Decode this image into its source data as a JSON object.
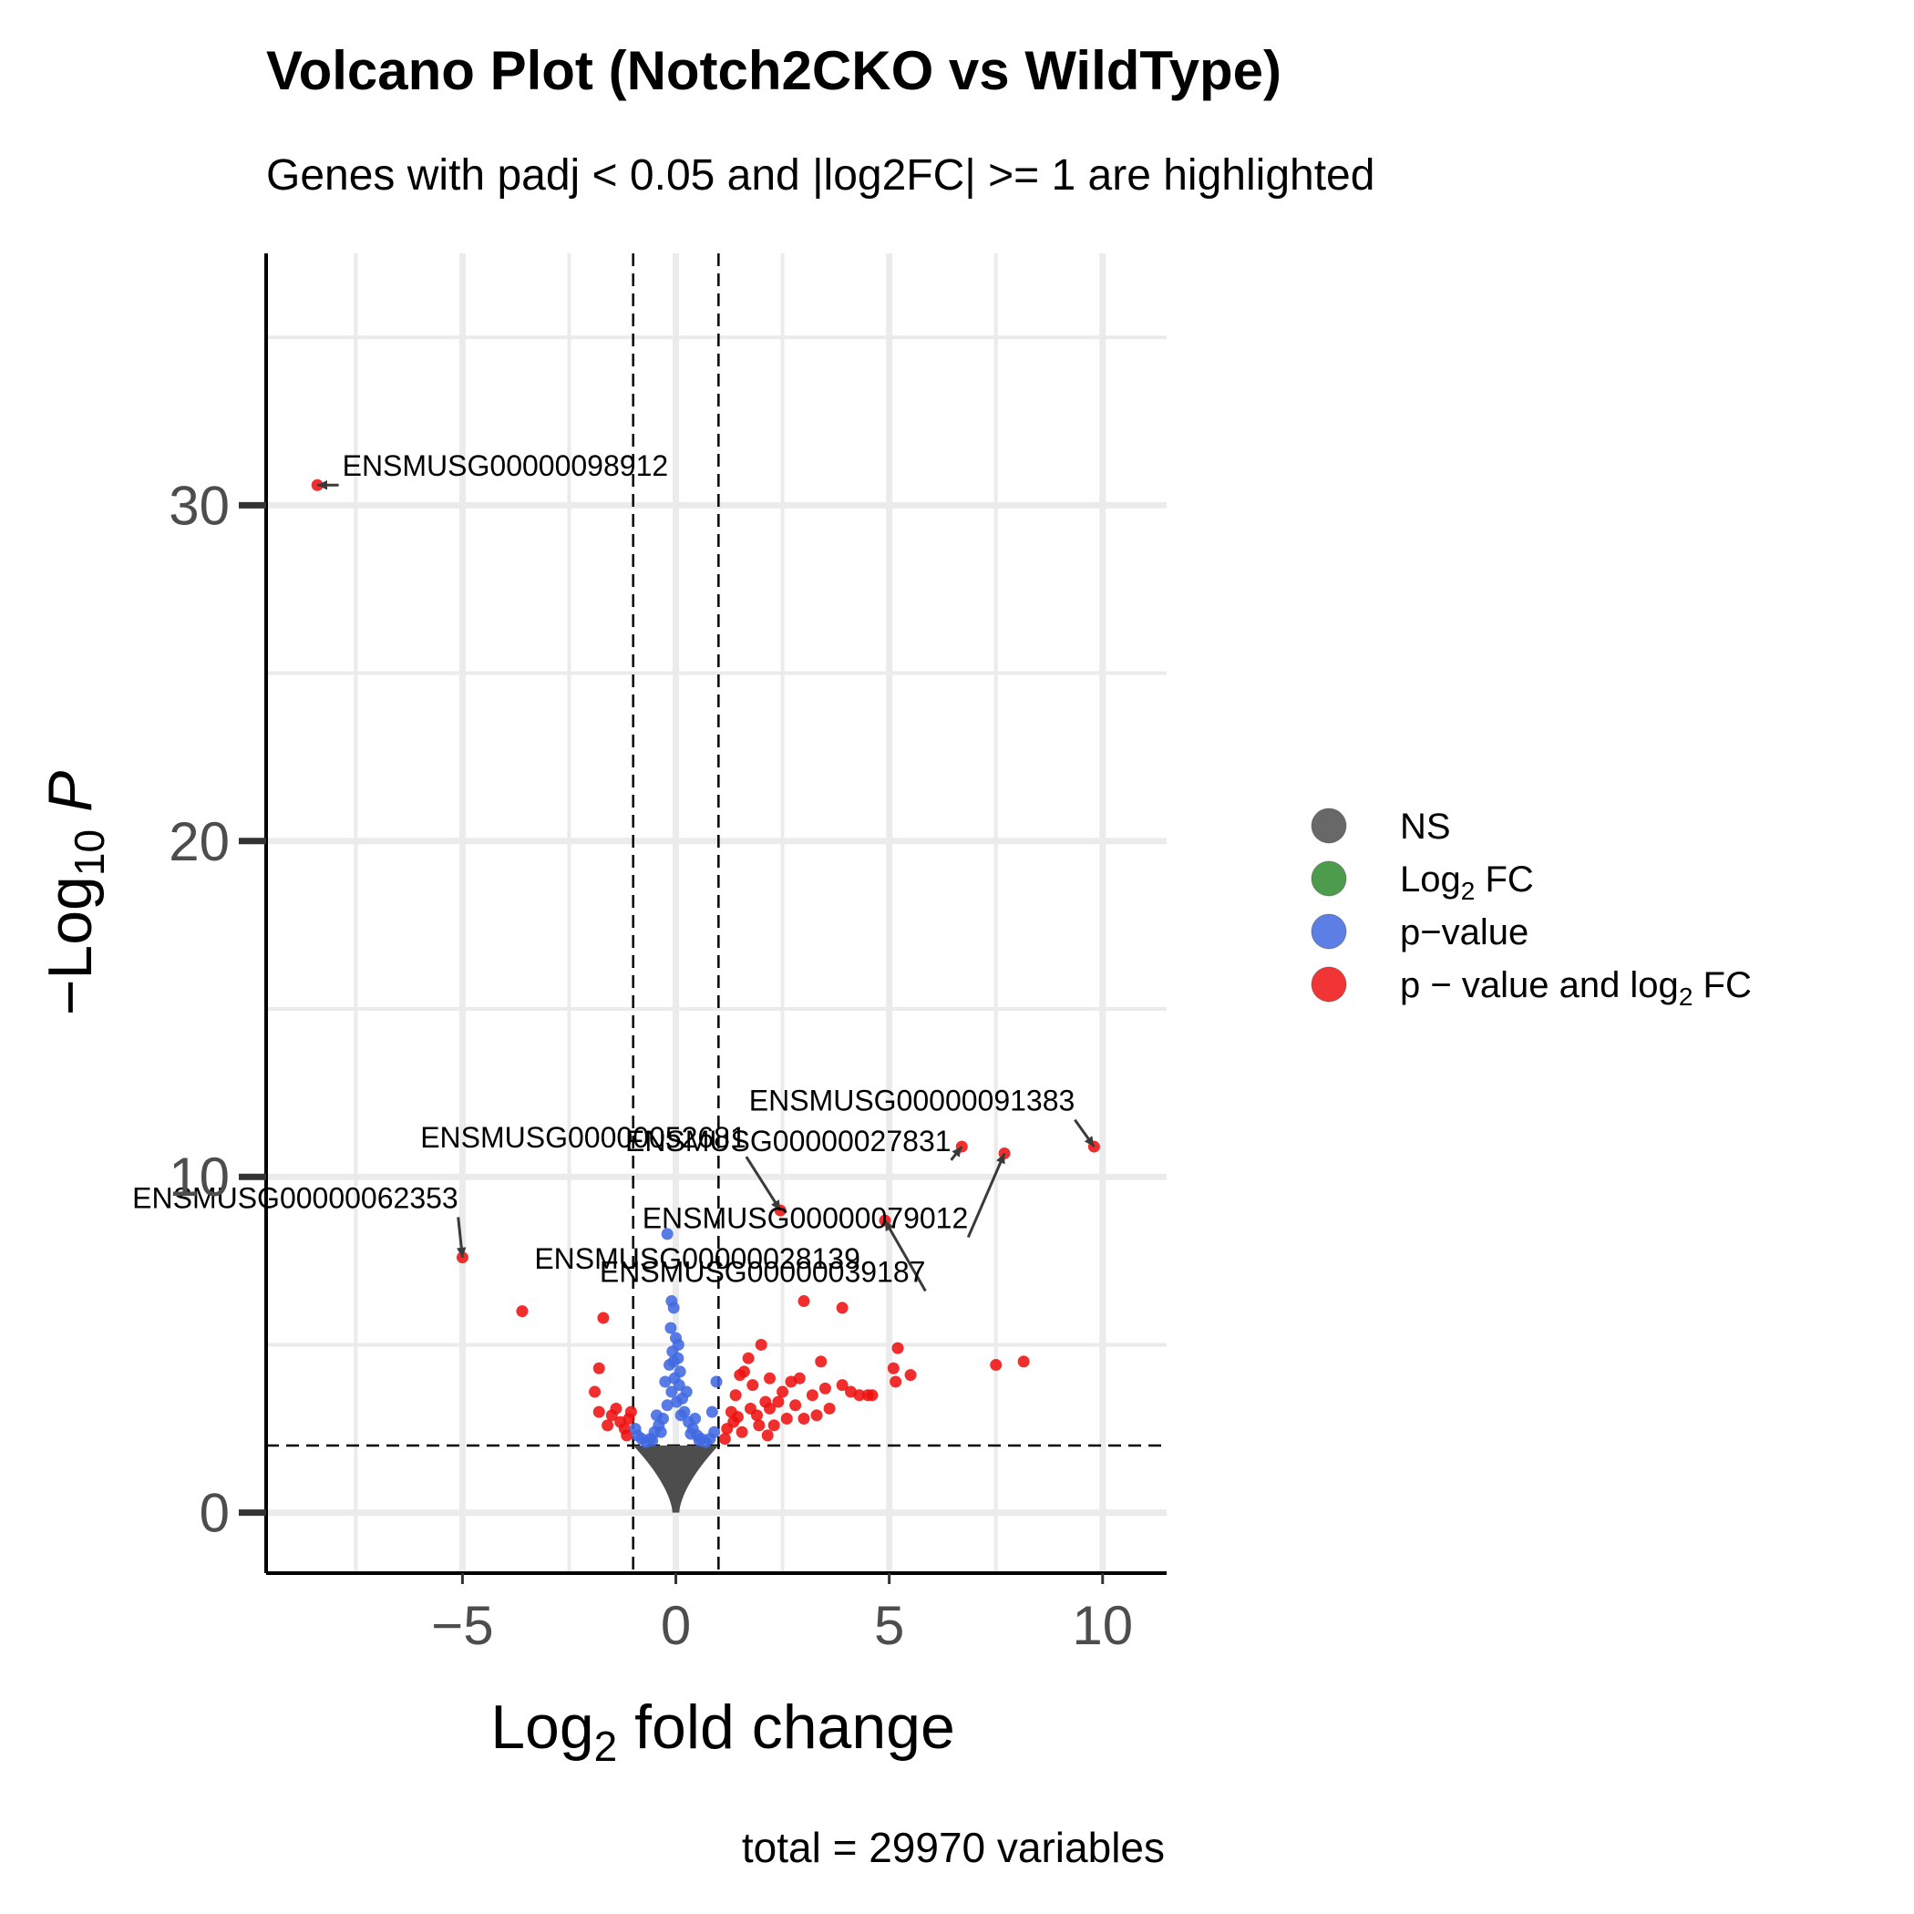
{
  "chart_data": {
    "type": "scatter",
    "title": "Volcano Plot (Notch2CKO vs WildType)",
    "subtitle": "Genes with padj < 0.05 and |log2FC| >= 1 are highlighted",
    "xlabel": {
      "prefix": "Log",
      "sub": "2",
      "suffix": " fold change"
    },
    "ylabel": {
      "prefix": "−Log",
      "sub": "10",
      "suffix": " P"
    },
    "caption": "total = 29970 variables",
    "xlim": [
      -9.6,
      11.5
    ],
    "ylim": [
      -1.8,
      37.5
    ],
    "x_ticks": [
      -5,
      0,
      5,
      10
    ],
    "x_tick_labels": [
      "−5",
      "0",
      "5",
      "10"
    ],
    "y_ticks": [
      0,
      10,
      20,
      30
    ],
    "y_tick_labels": [
      "0",
      "10",
      "20",
      "30"
    ],
    "grid": true,
    "fc_cutoff": 1,
    "p_cutoff_log10": 2,
    "colors": {
      "NS": "#4d4d4d",
      "FC": "#2e8b2e",
      "P": "#4169e1",
      "FC_P": "#ee1111"
    },
    "legend": {
      "position": "right",
      "items": [
        {
          "key": "NS",
          "text": "NS"
        },
        {
          "key": "FC",
          "prefix": "Log",
          "sub": "2",
          "suffix": " FC"
        },
        {
          "key": "P",
          "text": "p−value"
        },
        {
          "key": "FC_P",
          "prefix": "p − value and log",
          "sub": "2",
          "suffix": " FC"
        }
      ]
    },
    "series": [
      {
        "name": "FC_P",
        "points": [
          [
            -8.4,
            30.6
          ],
          [
            -5.0,
            7.6
          ],
          [
            -3.6,
            6.0
          ],
          [
            -1.7,
            5.8
          ],
          [
            -1.8,
            4.3
          ],
          [
            -1.9,
            3.6
          ],
          [
            -1.8,
            3.0
          ],
          [
            -1.5,
            2.9
          ],
          [
            -1.4,
            3.1
          ],
          [
            -1.3,
            2.7
          ],
          [
            -1.2,
            2.5
          ],
          [
            -1.1,
            2.8
          ],
          [
            -1.05,
            3.0
          ],
          [
            -1.6,
            2.6
          ],
          [
            -1.15,
            2.3
          ],
          [
            1.2,
            2.5
          ],
          [
            1.3,
            3.0
          ],
          [
            1.4,
            3.5
          ],
          [
            1.5,
            4.1
          ],
          [
            1.6,
            4.2
          ],
          [
            1.7,
            4.6
          ],
          [
            1.8,
            3.8
          ],
          [
            1.9,
            2.9
          ],
          [
            2.0,
            5.0
          ],
          [
            2.1,
            3.3
          ],
          [
            2.2,
            4.0
          ],
          [
            2.3,
            2.6
          ],
          [
            2.5,
            3.6
          ],
          [
            2.6,
            2.8
          ],
          [
            2.7,
            3.9
          ],
          [
            2.8,
            3.2
          ],
          [
            2.9,
            4.0
          ],
          [
            3.0,
            2.8
          ],
          [
            3.2,
            3.5
          ],
          [
            3.3,
            2.9
          ],
          [
            3.4,
            4.5
          ],
          [
            3.5,
            3.7
          ],
          [
            3.6,
            3.1
          ],
          [
            2.4,
            3.3
          ],
          [
            1.15,
            2.2
          ],
          [
            1.35,
            2.7
          ],
          [
            1.55,
            2.4
          ],
          [
            1.75,
            3.1
          ],
          [
            1.95,
            2.6
          ],
          [
            2.15,
            2.3
          ],
          [
            3.9,
            3.8
          ],
          [
            4.1,
            3.6
          ],
          [
            4.3,
            3.5
          ],
          [
            4.5,
            3.5
          ],
          [
            4.6,
            3.5
          ],
          [
            5.1,
            4.3
          ],
          [
            5.2,
            4.9
          ],
          [
            5.15,
            3.9
          ],
          [
            5.5,
            4.1
          ],
          [
            7.5,
            4.4
          ],
          [
            8.15,
            4.5
          ],
          [
            2.45,
            9.0
          ],
          [
            3.0,
            6.3
          ],
          [
            4.9,
            8.7
          ],
          [
            6.7,
            10.9
          ],
          [
            7.7,
            10.7
          ],
          [
            9.8,
            10.9
          ],
          [
            3.9,
            6.1
          ],
          [
            2.2,
            3.1
          ],
          [
            1.45,
            2.85
          ]
        ]
      },
      {
        "name": "P",
        "points": [
          [
            -0.2,
            8.3
          ],
          [
            -0.1,
            6.3
          ],
          [
            -0.05,
            6.1
          ],
          [
            -0.12,
            5.5
          ],
          [
            0.0,
            5.2
          ],
          [
            -0.08,
            4.8
          ],
          [
            0.05,
            4.6
          ],
          [
            -0.15,
            4.4
          ],
          [
            0.1,
            4.2
          ],
          [
            -0.03,
            4.0
          ],
          [
            0.08,
            3.8
          ],
          [
            -0.1,
            3.6
          ],
          [
            0.15,
            3.4
          ],
          [
            -0.2,
            3.2
          ],
          [
            0.2,
            3.0
          ],
          [
            -0.3,
            2.8
          ],
          [
            0.3,
            2.7
          ],
          [
            -0.4,
            2.6
          ],
          [
            0.4,
            2.5
          ],
          [
            -0.5,
            2.4
          ],
          [
            0.5,
            2.3
          ],
          [
            -0.6,
            2.2
          ],
          [
            0.6,
            2.2
          ],
          [
            -0.7,
            2.1
          ],
          [
            0.7,
            2.1
          ],
          [
            0.8,
            2.2
          ],
          [
            -0.8,
            2.2
          ],
          [
            0.9,
            2.4
          ],
          [
            -0.9,
            2.3
          ],
          [
            0.95,
            3.9
          ],
          [
            0.85,
            3.0
          ],
          [
            -0.95,
            2.5
          ],
          [
            0.25,
            3.6
          ],
          [
            -0.25,
            3.9
          ],
          [
            0.02,
            3.3
          ],
          [
            0.12,
            2.9
          ],
          [
            -0.35,
            2.4
          ],
          [
            0.35,
            2.35
          ],
          [
            -0.45,
            2.9
          ],
          [
            0.45,
            2.8
          ],
          [
            -0.55,
            2.15
          ],
          [
            0.55,
            2.15
          ],
          [
            -0.05,
            4.5
          ],
          [
            0.06,
            5.0
          ]
        ]
      }
    ],
    "labels": [
      {
        "text": "ENSMUSG00000098912",
        "point": [
          -8.4,
          30.6
        ],
        "anchor": [
          -7.9,
          30.6
        ],
        "align": "start"
      },
      {
        "text": "ENSMUSG00000052681",
        "point": [
          2.45,
          9.0
        ],
        "anchor": [
          1.65,
          10.6
        ],
        "align": "end"
      },
      {
        "text": "ENSMUSG00000062353",
        "point": [
          -5.0,
          7.6
        ],
        "anchor": [
          -5.1,
          8.8
        ],
        "align": "end"
      },
      {
        "text": "ENSMUSG00000028139",
        "point": [
          -3.4,
          7.0
        ],
        "anchor": [
          -3.4,
          7.0
        ],
        "align": "start"
      },
      {
        "text": "ENSMUSG00000091383",
        "point": [
          9.8,
          10.9
        ],
        "anchor": [
          9.35,
          11.7
        ],
        "align": "end"
      },
      {
        "text": "ENSMUSG00000027831",
        "point": [
          6.7,
          10.9
        ],
        "anchor": [
          6.45,
          10.5
        ],
        "align": "end"
      },
      {
        "text": "ENSMUSG00000079012",
        "point": [
          7.7,
          10.7
        ],
        "anchor": [
          6.85,
          8.2
        ],
        "align": "end"
      },
      {
        "text": "ENSMUSG00000039187",
        "point": [
          4.9,
          8.7
        ],
        "anchor": [
          5.85,
          6.6
        ],
        "align": "end"
      }
    ]
  }
}
